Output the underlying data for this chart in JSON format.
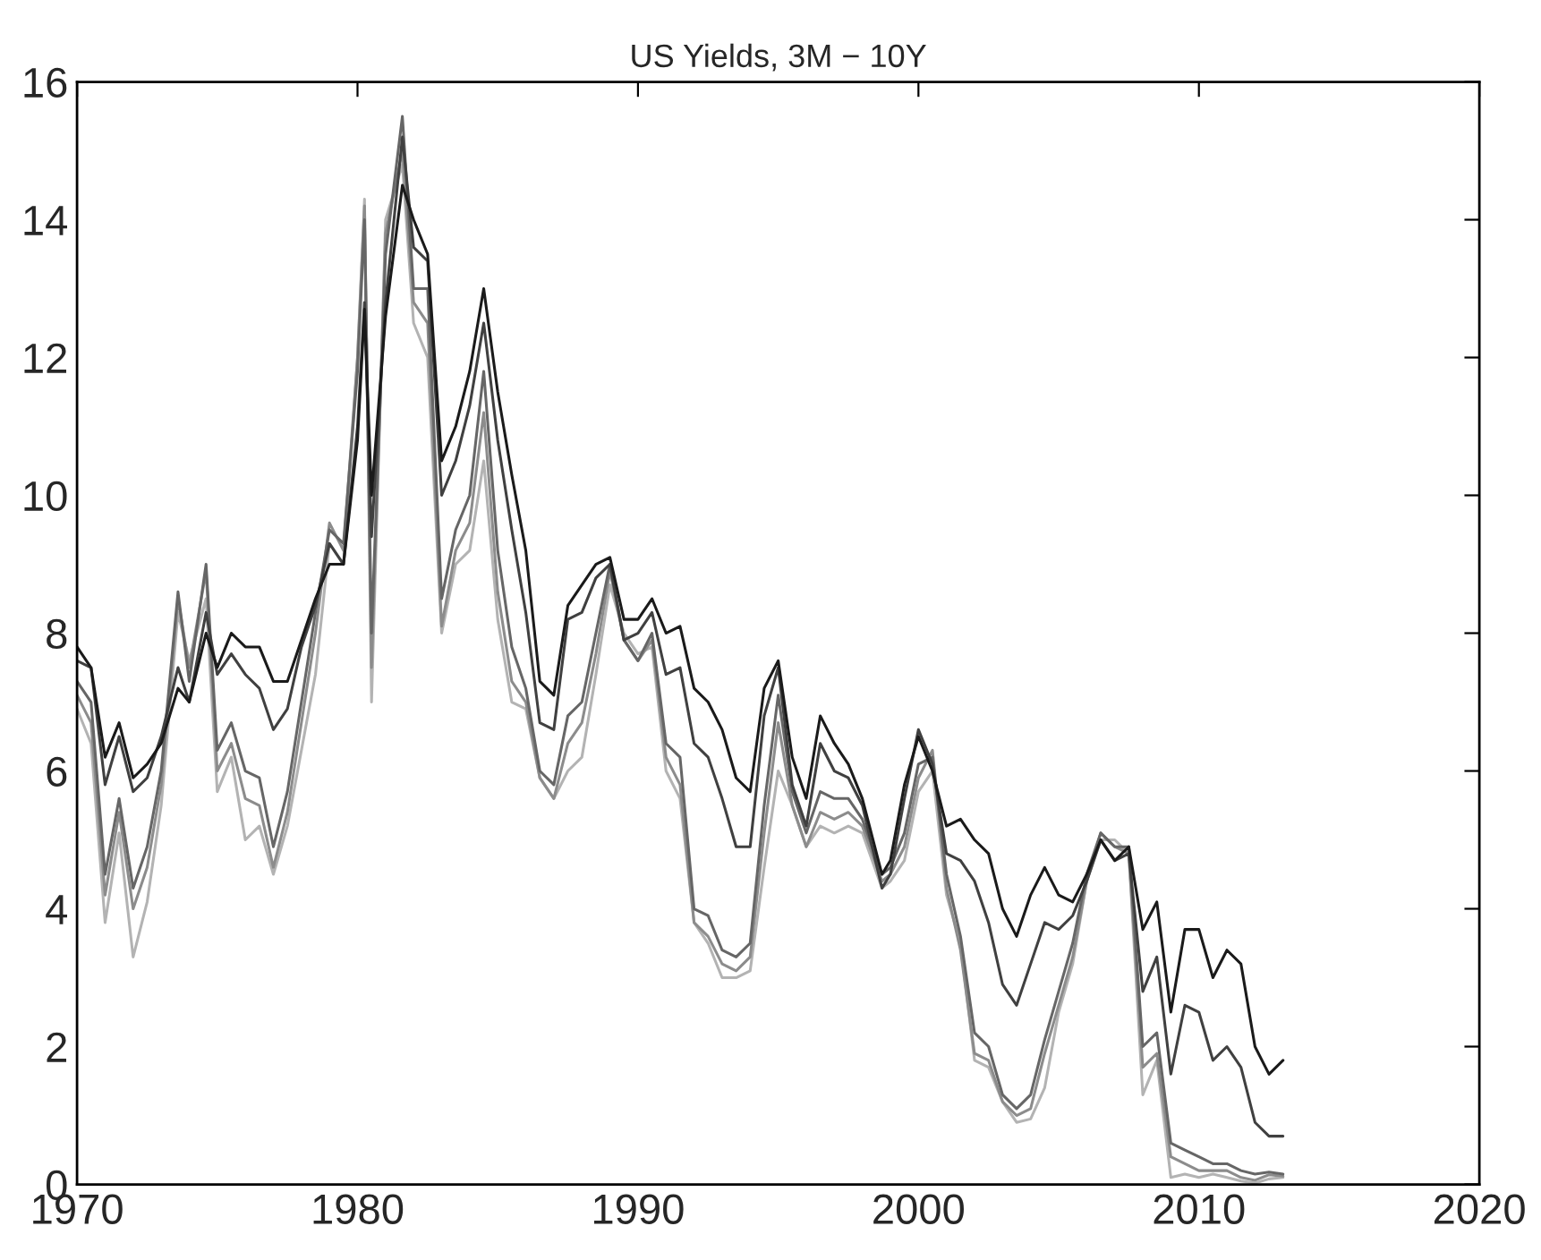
{
  "chart_data": {
    "type": "line",
    "title": "US Yields, 3M − 10Y",
    "x": [
      1970,
      1970.5,
      1971,
      1971.5,
      1972,
      1972.5,
      1973,
      1973.6,
      1974,
      1974.6,
      1975,
      1975.5,
      1976,
      1976.5,
      1977,
      1977.5,
      1978,
      1978.5,
      1979,
      1979.5,
      1980,
      1980.25,
      1980.5,
      1981,
      1981.6,
      1982,
      1982.5,
      1983,
      1983.5,
      1984,
      1984.5,
      1985,
      1985.5,
      1986,
      1986.5,
      1987,
      1987.5,
      1988,
      1988.5,
      1989,
      1989.5,
      1990,
      1990.5,
      1991,
      1991.5,
      1992,
      1992.5,
      1993,
      1993.5,
      1994,
      1994.5,
      1995,
      1995.5,
      1996,
      1996.5,
      1997,
      1997.5,
      1998,
      1998.7,
      1999,
      1999.5,
      2000,
      2000.5,
      2001,
      2001.5,
      2002,
      2002.5,
      2003,
      2003.5,
      2004,
      2004.5,
      2005,
      2005.5,
      2006,
      2006.5,
      2007,
      2007.5,
      2008,
      2008.5,
      2009,
      2009.5,
      2010,
      2010.5,
      2011,
      2011.5,
      2012,
      2012.5,
      2013
    ],
    "series": [
      {
        "color": "#b3b3b3",
        "values": [
          6.9,
          6.4,
          3.8,
          5.1,
          3.3,
          4.1,
          5.5,
          8.3,
          7.6,
          8.5,
          5.7,
          6.2,
          5.0,
          5.2,
          4.5,
          5.2,
          6.3,
          7.4,
          9.3,
          9.0,
          12.0,
          14.3,
          7.0,
          14.0,
          14.8,
          12.5,
          12.0,
          8.0,
          9.0,
          9.2,
          10.5,
          8.2,
          7.0,
          6.9,
          5.9,
          5.6,
          6.0,
          6.2,
          7.4,
          8.7,
          8.0,
          7.7,
          7.8,
          6.0,
          5.6,
          3.8,
          3.5,
          3.0,
          3.0,
          3.1,
          4.6,
          6.0,
          5.5,
          4.9,
          5.2,
          5.1,
          5.2,
          5.1,
          4.3,
          4.4,
          4.7,
          5.7,
          6.0,
          4.2,
          3.5,
          1.8,
          1.7,
          1.2,
          0.9,
          0.95,
          1.4,
          2.5,
          3.2,
          4.4,
          5.0,
          5.0,
          4.8,
          1.3,
          1.8,
          0.1,
          0.15,
          0.1,
          0.15,
          0.1,
          0.05,
          0.02,
          0.08,
          0.1
        ]
      },
      {
        "color": "#8c8c8c",
        "values": [
          7.1,
          6.7,
          4.2,
          5.4,
          4.0,
          4.6,
          5.8,
          8.5,
          7.5,
          8.9,
          6.0,
          6.4,
          5.6,
          5.5,
          4.6,
          5.4,
          6.7,
          8.0,
          9.6,
          9.2,
          12.0,
          14.2,
          7.5,
          13.8,
          15.0,
          12.8,
          12.5,
          8.1,
          9.2,
          9.6,
          11.2,
          8.6,
          7.3,
          7.0,
          5.9,
          5.6,
          6.4,
          6.7,
          7.7,
          8.9,
          7.9,
          7.6,
          7.9,
          6.2,
          5.8,
          3.8,
          3.6,
          3.2,
          3.1,
          3.3,
          5.1,
          6.7,
          5.5,
          4.9,
          5.4,
          5.3,
          5.4,
          5.2,
          4.4,
          4.5,
          4.9,
          5.9,
          6.3,
          4.3,
          3.4,
          1.9,
          1.8,
          1.2,
          1.0,
          1.1,
          1.9,
          2.6,
          3.3,
          4.4,
          5.1,
          4.9,
          4.8,
          1.7,
          1.9,
          0.4,
          0.3,
          0.2,
          0.2,
          0.2,
          0.1,
          0.06,
          0.14,
          0.12
        ]
      },
      {
        "color": "#666666",
        "values": [
          7.3,
          7.0,
          4.5,
          5.6,
          4.3,
          4.9,
          6.0,
          8.6,
          7.3,
          9.0,
          6.3,
          6.7,
          6.0,
          5.9,
          4.9,
          5.7,
          7.0,
          8.3,
          9.5,
          9.3,
          11.8,
          14.0,
          8.0,
          13.5,
          15.5,
          13.0,
          13.0,
          8.5,
          9.5,
          10.0,
          11.8,
          9.2,
          7.8,
          7.2,
          6.0,
          5.8,
          6.8,
          7.0,
          8.0,
          9.0,
          7.9,
          7.6,
          8.0,
          6.4,
          6.2,
          4.0,
          3.9,
          3.4,
          3.3,
          3.5,
          5.5,
          7.1,
          5.7,
          5.1,
          5.7,
          5.6,
          5.6,
          5.3,
          4.5,
          4.6,
          5.1,
          6.1,
          6.2,
          4.5,
          3.6,
          2.2,
          2.0,
          1.3,
          1.1,
          1.3,
          2.1,
          2.8,
          3.5,
          4.5,
          5.1,
          4.9,
          4.9,
          2.0,
          2.2,
          0.6,
          0.5,
          0.4,
          0.3,
          0.3,
          0.2,
          0.15,
          0.18,
          0.15
        ]
      },
      {
        "color": "#404040",
        "values": [
          7.6,
          7.5,
          5.8,
          6.5,
          5.7,
          5.9,
          6.5,
          7.5,
          7.0,
          8.3,
          7.4,
          7.7,
          7.4,
          7.2,
          6.6,
          6.9,
          7.8,
          8.4,
          9.3,
          9.0,
          11.0,
          12.8,
          9.4,
          12.8,
          15.2,
          13.6,
          13.4,
          10.0,
          10.5,
          11.3,
          12.5,
          10.8,
          9.5,
          8.3,
          6.7,
          6.6,
          8.2,
          8.3,
          8.8,
          9.0,
          7.9,
          8.0,
          8.3,
          7.4,
          7.5,
          6.4,
          6.2,
          5.6,
          4.9,
          4.9,
          6.8,
          7.5,
          5.8,
          5.2,
          6.4,
          6.0,
          5.9,
          5.5,
          4.3,
          4.5,
          5.6,
          6.6,
          6.1,
          4.8,
          4.7,
          4.4,
          3.8,
          2.9,
          2.6,
          3.2,
          3.8,
          3.7,
          3.9,
          4.4,
          5.0,
          4.7,
          4.8,
          2.8,
          3.3,
          1.6,
          2.6,
          2.5,
          1.8,
          2.0,
          1.7,
          0.9,
          0.7,
          0.7
        ]
      },
      {
        "color": "#1a1a1a",
        "values": [
          7.8,
          7.5,
          6.2,
          6.7,
          5.9,
          6.1,
          6.4,
          7.2,
          7.0,
          8.0,
          7.5,
          8.0,
          7.8,
          7.8,
          7.3,
          7.3,
          7.9,
          8.5,
          9.0,
          9.0,
          10.8,
          12.7,
          10.0,
          12.6,
          14.5,
          14.0,
          13.5,
          10.5,
          11.0,
          11.8,
          13.0,
          11.5,
          10.3,
          9.2,
          7.3,
          7.1,
          8.4,
          8.7,
          9.0,
          9.1,
          8.2,
          8.2,
          8.5,
          8.0,
          8.1,
          7.2,
          7.0,
          6.6,
          5.9,
          5.7,
          7.2,
          7.6,
          6.2,
          5.6,
          6.8,
          6.4,
          6.1,
          5.6,
          4.5,
          4.7,
          5.8,
          6.5,
          6.0,
          5.2,
          5.3,
          5.0,
          4.8,
          4.0,
          3.6,
          4.2,
          4.6,
          4.2,
          4.1,
          4.5,
          5.0,
          4.7,
          4.9,
          3.7,
          4.1,
          2.5,
          3.7,
          3.7,
          3.0,
          3.4,
          3.2,
          2.0,
          1.6,
          1.8
        ]
      }
    ],
    "xlim": [
      1970,
      2020
    ],
    "xticks": [
      1970,
      1980,
      1990,
      2000,
      2010,
      2020
    ],
    "ylim": [
      0,
      16
    ],
    "yticks": [
      0,
      2,
      4,
      6,
      8,
      10,
      12,
      14,
      16
    ],
    "grid": false,
    "legend": false,
    "marker": "none",
    "line_style": "solid"
  }
}
